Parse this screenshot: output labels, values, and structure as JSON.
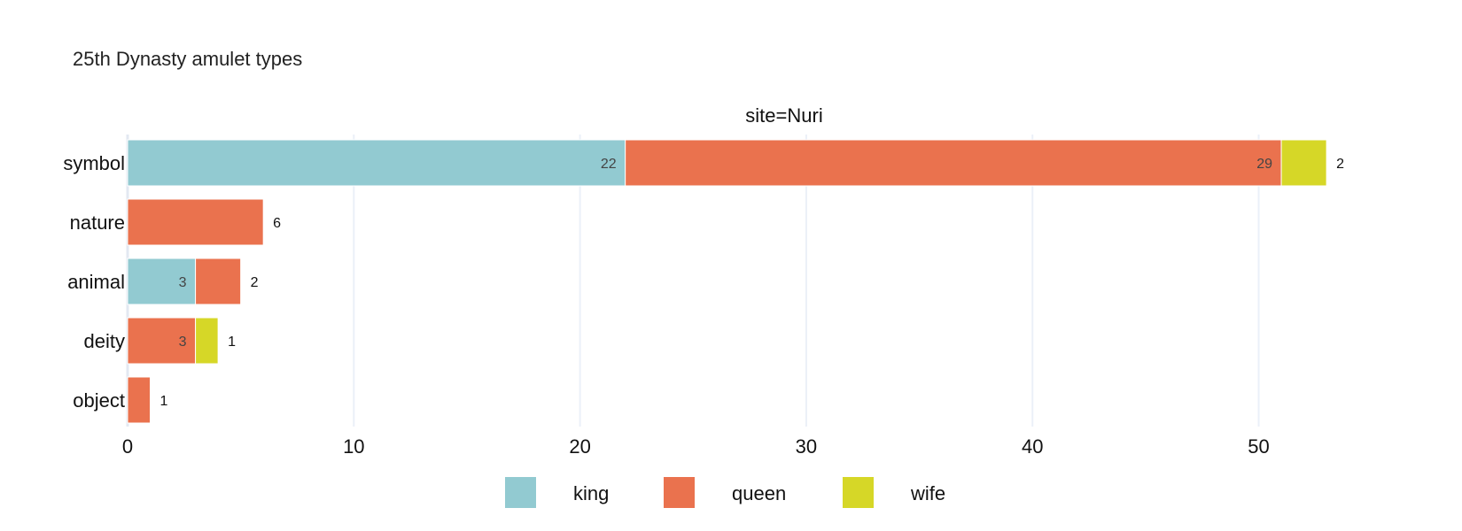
{
  "chart_data": {
    "type": "bar",
    "orientation": "horizontal",
    "stacked": true,
    "title": "25th Dynasty amulet types",
    "facet_label": "site=Nuri",
    "categories": [
      "symbol",
      "nature",
      "animal",
      "deity",
      "object"
    ],
    "series": [
      {
        "name": "king",
        "color": "#92cad1",
        "values": [
          22,
          0,
          3,
          0,
          0
        ]
      },
      {
        "name": "queen",
        "color": "#ea724e",
        "values": [
          29,
          6,
          2,
          3,
          1
        ]
      },
      {
        "name": "wife",
        "color": "#d6d727",
        "values": [
          2,
          0,
          0,
          1,
          0
        ]
      }
    ],
    "xlim": [
      0,
      53.7
    ],
    "x_ticks": [
      0,
      10,
      20,
      30,
      40,
      50
    ],
    "grid": "vertical",
    "legend_position": "bottom"
  }
}
